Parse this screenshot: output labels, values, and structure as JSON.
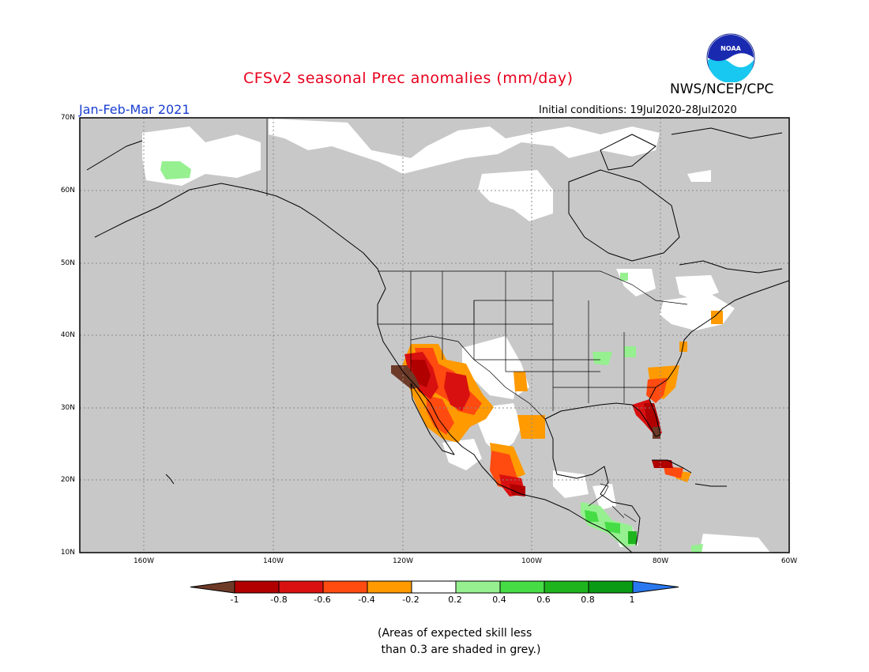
{
  "title": "CFSv2 seasonal Prec anomalies (mm/day)",
  "season": "Jan-Feb-Mar 2021",
  "organization": "NWS/NCEP/CPC",
  "logo_text": "NOAA",
  "initial_conditions": "Initial conditions: 19Jul2020-28Jul2020",
  "latitude_labels": [
    "70N",
    "60N",
    "50N",
    "40N",
    "30N",
    "20N",
    "10N"
  ],
  "longitude_labels": [
    "160W",
    "140W",
    "120W",
    "100W",
    "80W",
    "60W"
  ],
  "colorbar": {
    "labels": [
      "-1",
      "-0.8",
      "-0.6",
      "-0.4",
      "-0.2",
      "0.2",
      "0.4",
      "0.6",
      "0.8",
      "1"
    ],
    "colors": [
      "#6e3a28",
      "#b00000",
      "#d81010",
      "#ff4a10",
      "#ff9a00",
      "#ffffff",
      "#96f090",
      "#46dc46",
      "#1eb41e",
      "#0a9a14",
      "#2a78f0"
    ]
  },
  "note": "(Areas of expected skill less\n than 0.3 are shaded in grey.)",
  "map": {
    "region": "North America",
    "lon_range": [
      -170,
      -60
    ],
    "lat_range": [
      10,
      70
    ],
    "mask_color": "#c8c8c8"
  }
}
